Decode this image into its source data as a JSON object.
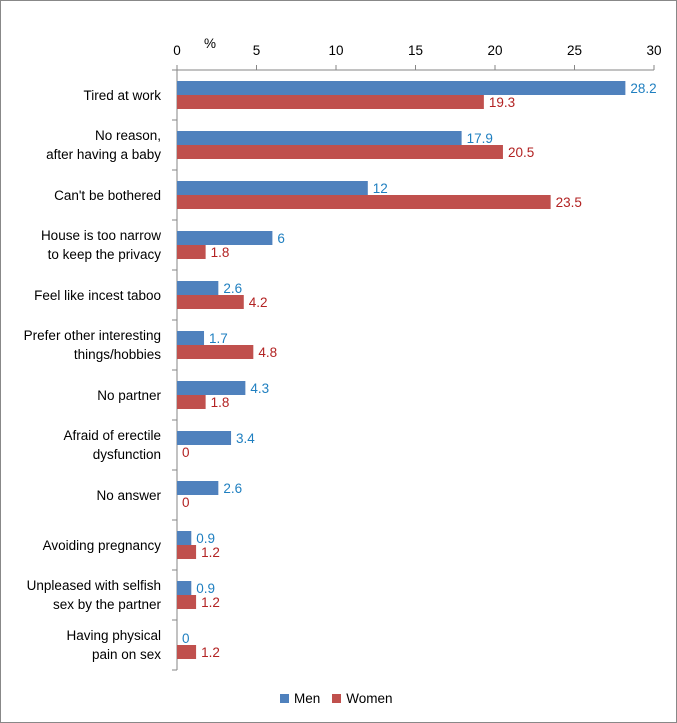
{
  "chart_data": {
    "type": "bar",
    "orientation": "horizontal",
    "unit_label": "%",
    "xlim": [
      0,
      30
    ],
    "x_ticks": [
      "0",
      "5",
      "10",
      "15",
      "20",
      "25",
      "30"
    ],
    "grid": false,
    "legend_position": "bottom",
    "categories": [
      [
        "Tired at work"
      ],
      [
        "No reason,",
        "after having a baby"
      ],
      [
        "Can't be bothered"
      ],
      [
        "House is too narrow",
        "to keep the privacy"
      ],
      [
        "Feel like incest taboo"
      ],
      [
        "Prefer other interesting",
        "things/hobbies"
      ],
      [
        "No partner"
      ],
      [
        "Afraid of erectile",
        "dysfunction"
      ],
      [
        "No answer"
      ],
      [
        "Avoiding pregnancy"
      ],
      [
        "Unpleased with selfish",
        "sex by the partner"
      ],
      [
        "Having physical",
        "pain on sex"
      ]
    ],
    "series": [
      {
        "name": "Men",
        "color": "#4F81BD",
        "label_color": "#1F7FC0",
        "values": [
          28.2,
          17.9,
          12,
          6,
          2.6,
          1.7,
          4.3,
          3.4,
          2.6,
          0.9,
          0.9,
          0
        ],
        "labels": [
          "28.2",
          "17.9",
          "12",
          "6",
          "2.6",
          "1.7",
          "4.3",
          "3.4",
          "2.6",
          "0.9",
          "0.9",
          "0"
        ]
      },
      {
        "name": "Women",
        "color": "#C0504D",
        "label_color": "#B22222",
        "values": [
          19.3,
          20.5,
          23.5,
          1.8,
          4.2,
          4.8,
          1.8,
          0,
          0,
          1.2,
          1.2,
          1.2
        ],
        "labels": [
          "19.3",
          "20.5",
          "23.5",
          "1.8",
          "4.2",
          "4.8",
          "1.8",
          "0",
          "0",
          "1.2",
          "1.2",
          "1.2"
        ]
      }
    ]
  }
}
